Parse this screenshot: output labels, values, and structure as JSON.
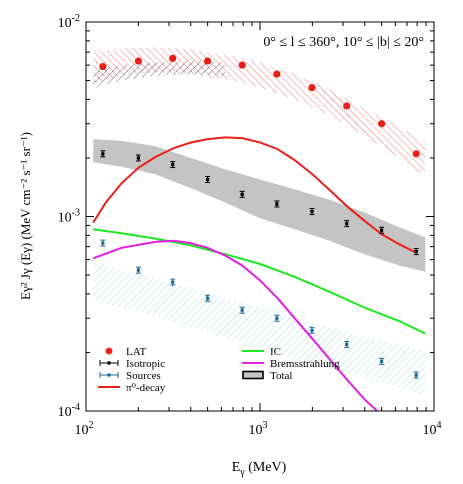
{
  "chart_data": {
    "type": "scatter",
    "title": "",
    "annotation": "0° ≤ l ≤ 360°, 10° ≤ |b| ≤ 20°",
    "xlabel_main": "E",
    "xlabel_sub": "γ",
    "xlabel_tail": " (MeV)",
    "ylabel_text": "Eγ² Jγ (Eγ) (MeV cm⁻² s⁻¹ sr⁻¹)",
    "xscale": "log",
    "yscale": "log",
    "xlim": [
      100,
      10000
    ],
    "ylim": [
      0.0001,
      0.01
    ],
    "x_ticks": [
      {
        "value": 100,
        "base": "10",
        "exp": "2"
      },
      {
        "value": 1000,
        "base": "10",
        "exp": "3"
      },
      {
        "value": 10000,
        "base": "10",
        "exp": "4"
      }
    ],
    "y_ticks": [
      {
        "value": 0.0001,
        "base": "10",
        "exp": "-4"
      },
      {
        "value": 0.001,
        "base": "10",
        "exp": "-3"
      },
      {
        "value": 0.01,
        "base": "10",
        "exp": "-2"
      }
    ],
    "legend_placement": "bottom",
    "series": [
      {
        "name": "LAT",
        "kind": "points",
        "color": "#e8201c",
        "x": [
          125,
          200,
          315,
          500,
          790,
          1250,
          1990,
          3150,
          5000,
          7900
        ],
        "y": [
          0.0059,
          0.0063,
          0.0065,
          0.0063,
          0.006,
          0.0054,
          0.0046,
          0.0037,
          0.003,
          0.0021
        ]
      },
      {
        "name": "Isotropic",
        "kind": "errorbars",
        "color": "#000000",
        "x": [
          125,
          200,
          315,
          500,
          790,
          1250,
          1990,
          3150,
          5000,
          7900
        ],
        "y": [
          0.0021,
          0.002,
          0.00185,
          0.00155,
          0.0013,
          0.00116,
          0.00106,
          0.00092,
          0.00085,
          0.00066
        ]
      },
      {
        "name": "Sources",
        "kind": "errorbars",
        "color": "#1d6a93",
        "x": [
          125,
          200,
          315,
          500,
          790,
          1250,
          1990,
          3150,
          5000,
          7900
        ],
        "y": [
          0.00073,
          0.00053,
          0.00046,
          0.00038,
          0.00033,
          0.0003,
          0.00026,
          0.00022,
          0.00018,
          0.000153
        ]
      },
      {
        "name": "π⁰-decay",
        "kind": "line",
        "color": "#e8201c",
        "x": [
          110,
          130,
          160,
          200,
          250,
          320,
          400,
          500,
          630,
          790,
          1000,
          1260,
          1580,
          2000,
          2510,
          3160,
          3980,
          5010,
          6310,
          7940
        ],
        "y": [
          0.00093,
          0.00118,
          0.00148,
          0.00178,
          0.00202,
          0.00225,
          0.0024,
          0.0025,
          0.00255,
          0.00253,
          0.0024,
          0.00222,
          0.00195,
          0.00165,
          0.00137,
          0.00113,
          0.00095,
          0.00081,
          0.00072,
          0.00065
        ]
      },
      {
        "name": "IC",
        "kind": "line",
        "color": "#1ee81e",
        "x": [
          110,
          160,
          250,
          400,
          630,
          1000,
          1580,
          2510,
          3980,
          6310,
          8910
        ],
        "y": [
          0.00086,
          0.00082,
          0.00077,
          0.00071,
          0.00064,
          0.00057,
          0.00049,
          0.00041,
          0.00034,
          0.00029,
          0.00025
        ]
      },
      {
        "name": "Bremsstrahlung",
        "kind": "line",
        "color": "#e11ee1",
        "x": [
          110,
          160,
          250,
          320,
          400,
          500,
          630,
          790,
          1000,
          1260,
          1580,
          2000,
          2510,
          3160,
          3980,
          5010
        ],
        "y": [
          0.00061,
          0.00069,
          0.00074,
          0.00075,
          0.00073,
          0.00069,
          0.00063,
          0.00056,
          0.00047,
          0.00038,
          0.0003,
          0.000235,
          0.000185,
          0.000145,
          0.000115,
          9.5e-05
        ]
      },
      {
        "name": "Total",
        "kind": "band",
        "color": "#000000",
        "x": [
          110,
          160,
          250,
          400,
          630,
          1000,
          1580,
          2510,
          3980,
          6310,
          8910
        ],
        "y_low": [
          0.0019,
          0.0018,
          0.00165,
          0.0014,
          0.00118,
          0.00098,
          0.00086,
          0.00075,
          0.00064,
          0.00056,
          0.00052
        ],
        "y_high": [
          0.0025,
          0.00245,
          0.0023,
          0.002,
          0.00175,
          0.00155,
          0.00138,
          0.00122,
          0.00105,
          0.00088,
          0.00078
        ]
      }
    ],
    "unnamed_bands": [
      {
        "color": "#f26b5b",
        "x": [
          110,
          160,
          250,
          400,
          630,
          1000,
          1580,
          2510,
          3980,
          6310,
          8910
        ],
        "y_low": [
          0.0048,
          0.0053,
          0.0055,
          0.0054,
          0.0051,
          0.0046,
          0.004,
          0.0033,
          0.0026,
          0.002,
          0.0016
        ],
        "y_high": [
          0.007,
          0.0073,
          0.0074,
          0.0072,
          0.0068,
          0.0062,
          0.0054,
          0.0045,
          0.0036,
          0.0029,
          0.0024
        ]
      },
      {
        "color": "#555555",
        "x": [
          110,
          160,
          250,
          400,
          630
        ],
        "y_low": [
          0.0046,
          0.005,
          0.0053,
          0.0054,
          0.0053
        ],
        "y_high": [
          0.0056,
          0.006,
          0.0062,
          0.0063,
          0.0062
        ]
      },
      {
        "color": "#9fd0e8",
        "x": [
          110,
          160,
          250,
          400,
          630,
          1000,
          1580,
          2510,
          3980,
          6310,
          8910
        ],
        "y_low": [
          0.00037,
          0.00034,
          0.00031,
          0.00027,
          0.00024,
          0.00021,
          0.000185,
          0.000165,
          0.000148,
          0.000132,
          0.00012
        ],
        "y_high": [
          0.00058,
          0.00053,
          0.00048,
          0.00043,
          0.00038,
          0.00034,
          0.0003,
          0.00027,
          0.00024,
          0.00022,
          0.0002
        ]
      }
    ]
  }
}
